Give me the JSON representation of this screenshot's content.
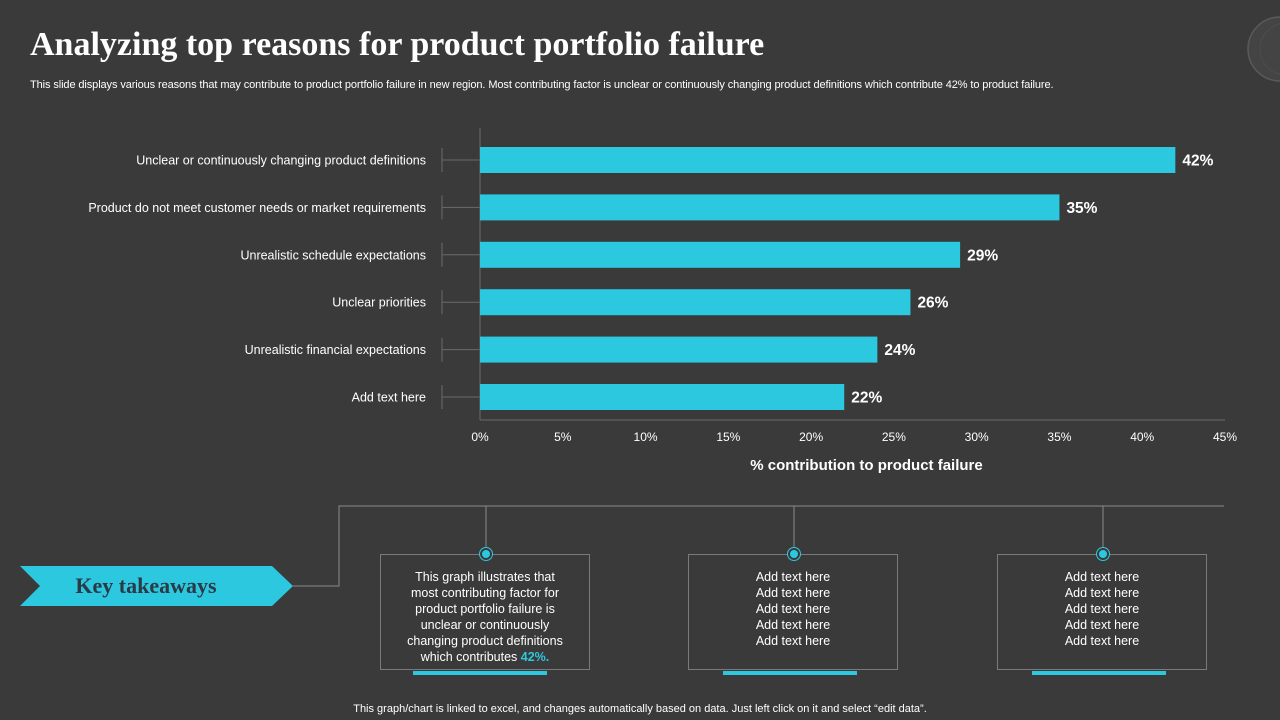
{
  "title": "Analyzing top reasons for product portfolio failure",
  "subtitle": "This slide displays various reasons that may contribute to product portfolio failure in new region. Most contributing factor is unclear or continuously changing product definitions which contribute 42% to product failure.",
  "colors": {
    "background": "#3a3a3a",
    "accent": "#2bc8e0",
    "text": "#ffffff"
  },
  "chart_data": {
    "type": "bar",
    "orientation": "horizontal",
    "categories": [
      "Unclear or continuously changing product definitions",
      "Product do not meet customer needs or market requirements",
      "Unrealistic schedule expectations",
      "Unclear priorities",
      "Unrealistic financial expectations",
      "Add text here"
    ],
    "values": [
      42,
      35,
      29,
      26,
      24,
      22
    ],
    "value_labels": [
      "42%",
      "35%",
      "29%",
      "26%",
      "24%",
      "22%"
    ],
    "xlim": [
      0,
      45
    ],
    "xticks": [
      0,
      5,
      10,
      15,
      20,
      25,
      30,
      35,
      40,
      45
    ],
    "xtick_labels": [
      "0%",
      "5%",
      "10%",
      "15%",
      "20%",
      "25%",
      "30%",
      "35%",
      "40%",
      "45%"
    ],
    "xlabel": "% contribution to product failure",
    "ylabel": "",
    "grid": false
  },
  "takeaways": {
    "label": "Key takeaways",
    "box1": {
      "lines": [
        "This graph illustrates that",
        "most contributing factor for",
        "product portfolio failure is",
        "unclear or continuously",
        "changing product definitions"
      ],
      "last_prefix": "which contributes ",
      "highlight": "42%",
      "last_suffix": "."
    },
    "box2": {
      "lines": [
        "Add text here",
        "Add text here",
        "Add text here",
        "Add text here",
        "Add text here"
      ]
    },
    "box3": {
      "lines": [
        "Add text here",
        "Add text here",
        "Add text here",
        "Add text here",
        "Add text here"
      ]
    }
  },
  "footer": "This graph/chart is linked to excel, and changes automatically based on data. Just left click on it and select “edit data”."
}
